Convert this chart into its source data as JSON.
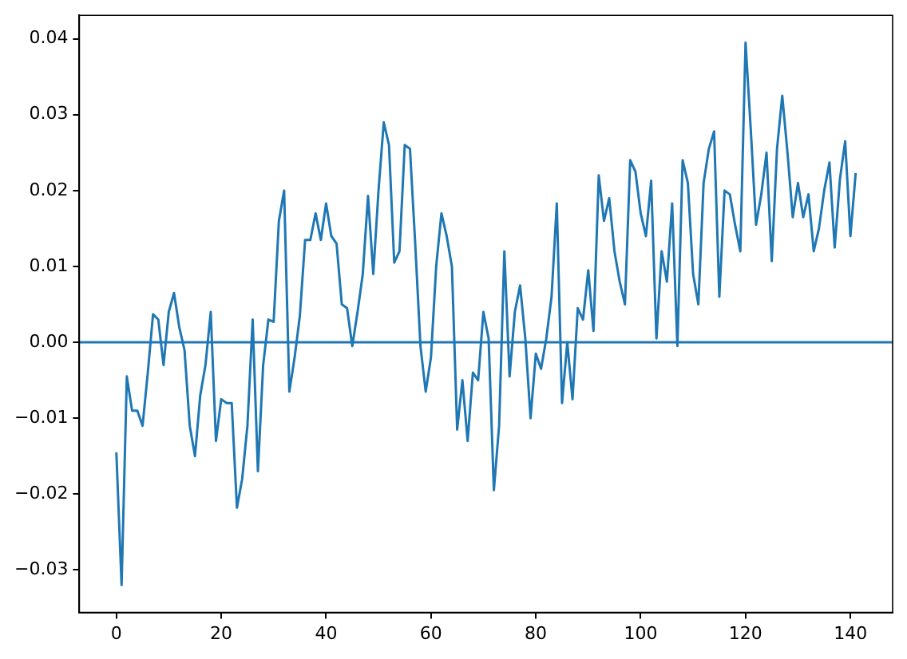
{
  "chart_data": {
    "type": "line",
    "x": [
      0,
      1,
      2,
      3,
      4,
      5,
      6,
      7,
      8,
      9,
      10,
      11,
      12,
      13,
      14,
      15,
      16,
      17,
      18,
      19,
      20,
      21,
      22,
      23,
      24,
      25,
      26,
      27,
      28,
      29,
      30,
      31,
      32,
      33,
      34,
      35,
      36,
      37,
      38,
      39,
      40,
      41,
      42,
      43,
      44,
      45,
      46,
      47,
      48,
      49,
      50,
      51,
      52,
      53,
      54,
      55,
      56,
      57,
      58,
      59,
      60,
      61,
      62,
      63,
      64,
      65,
      66,
      67,
      68,
      69,
      70,
      71,
      72,
      73,
      74,
      75,
      76,
      77,
      78,
      79,
      80,
      81,
      82,
      83,
      84,
      85,
      86,
      87,
      88,
      89,
      90,
      91,
      92,
      93,
      94,
      95,
      96,
      97,
      98,
      99,
      100,
      101,
      102,
      103,
      104,
      105,
      106,
      107,
      108,
      109,
      110,
      111,
      112,
      113,
      114,
      115,
      116,
      117,
      118,
      119,
      120,
      121,
      122,
      123,
      124,
      125,
      126,
      127,
      128,
      129,
      130,
      131,
      132,
      133,
      134,
      135,
      136,
      137,
      138,
      139,
      140,
      141
    ],
    "series": [
      {
        "color": "#1f77b4",
        "values": [
          -0.0145,
          -0.032,
          -0.0045,
          -0.009,
          -0.009,
          -0.011,
          -0.004,
          0.0037,
          0.003,
          -0.003,
          0.004,
          0.0065,
          0.002,
          -0.001,
          -0.011,
          -0.015,
          -0.007,
          -0.003,
          0.004,
          -0.013,
          -0.0075,
          -0.008,
          -0.008,
          -0.0218,
          -0.018,
          -0.011,
          0.003,
          -0.017,
          -0.003,
          0.003,
          0.0027,
          0.016,
          0.02,
          -0.0065,
          -0.002,
          0.0035,
          0.0135,
          0.0135,
          0.017,
          0.0135,
          0.0183,
          0.014,
          0.013,
          0.005,
          0.0045,
          -0.0005,
          0.004,
          0.009,
          0.0193,
          0.009,
          0.02,
          0.029,
          0.026,
          0.0105,
          0.012,
          0.026,
          0.0255,
          0.013,
          -0.0005,
          -0.0065,
          -0.002,
          0.01,
          0.017,
          0.014,
          0.01,
          -0.0115,
          -0.005,
          -0.013,
          -0.004,
          -0.005,
          0.004,
          0.0005,
          -0.0195,
          -0.011,
          0.012,
          -0.0045,
          0.004,
          0.0075,
          0.0005,
          -0.01,
          -0.0015,
          -0.0035,
          0.0005,
          0.006,
          0.0183,
          -0.008,
          0,
          -0.0075,
          0.0045,
          0.003,
          0.0095,
          0.0015,
          0.022,
          0.016,
          0.019,
          0.012,
          0.008,
          0.005,
          0.024,
          0.0225,
          0.017,
          0.014,
          0.0213,
          0.0005,
          0.012,
          0.008,
          0.0183,
          -0.0005,
          0.024,
          0.021,
          0.009,
          0.005,
          0.021,
          0.0255,
          0.0278,
          0.006,
          0.02,
          0.0195,
          0.0155,
          0.012,
          0.0395,
          0.028,
          0.0155,
          0.0195,
          0.025,
          0.0107,
          0.0255,
          0.0325,
          0.025,
          0.0165,
          0.021,
          0.0165,
          0.0195,
          0.012,
          0.015,
          0.02,
          0.0237,
          0.0125,
          0.0215,
          0.0265,
          0.014,
          0.0223
        ]
      }
    ],
    "xlim": [
      -7.05,
      148.05
    ],
    "xticks": [
      0,
      20,
      40,
      60,
      80,
      100,
      120,
      140
    ],
    "ylim": [
      -0.0356,
      0.0431
    ],
    "yticks": [
      {
        "value": -0.03,
        "label": "−0.03"
      },
      {
        "value": -0.02,
        "label": "−0.02"
      },
      {
        "value": -0.01,
        "label": "−0.01"
      },
      {
        "value": 0,
        "label": "0.00"
      },
      {
        "value": 0.01,
        "label": "0.01"
      },
      {
        "value": 0.02,
        "label": "0.02"
      },
      {
        "value": 0.03,
        "label": "0.03"
      },
      {
        "value": 0.04,
        "label": "0.04"
      }
    ],
    "ref_lines": [
      {
        "axis": "y",
        "value": 0,
        "color": "#1f77b4"
      }
    ],
    "grid": false,
    "legend": false,
    "marker": "none",
    "line_style": "solid"
  }
}
